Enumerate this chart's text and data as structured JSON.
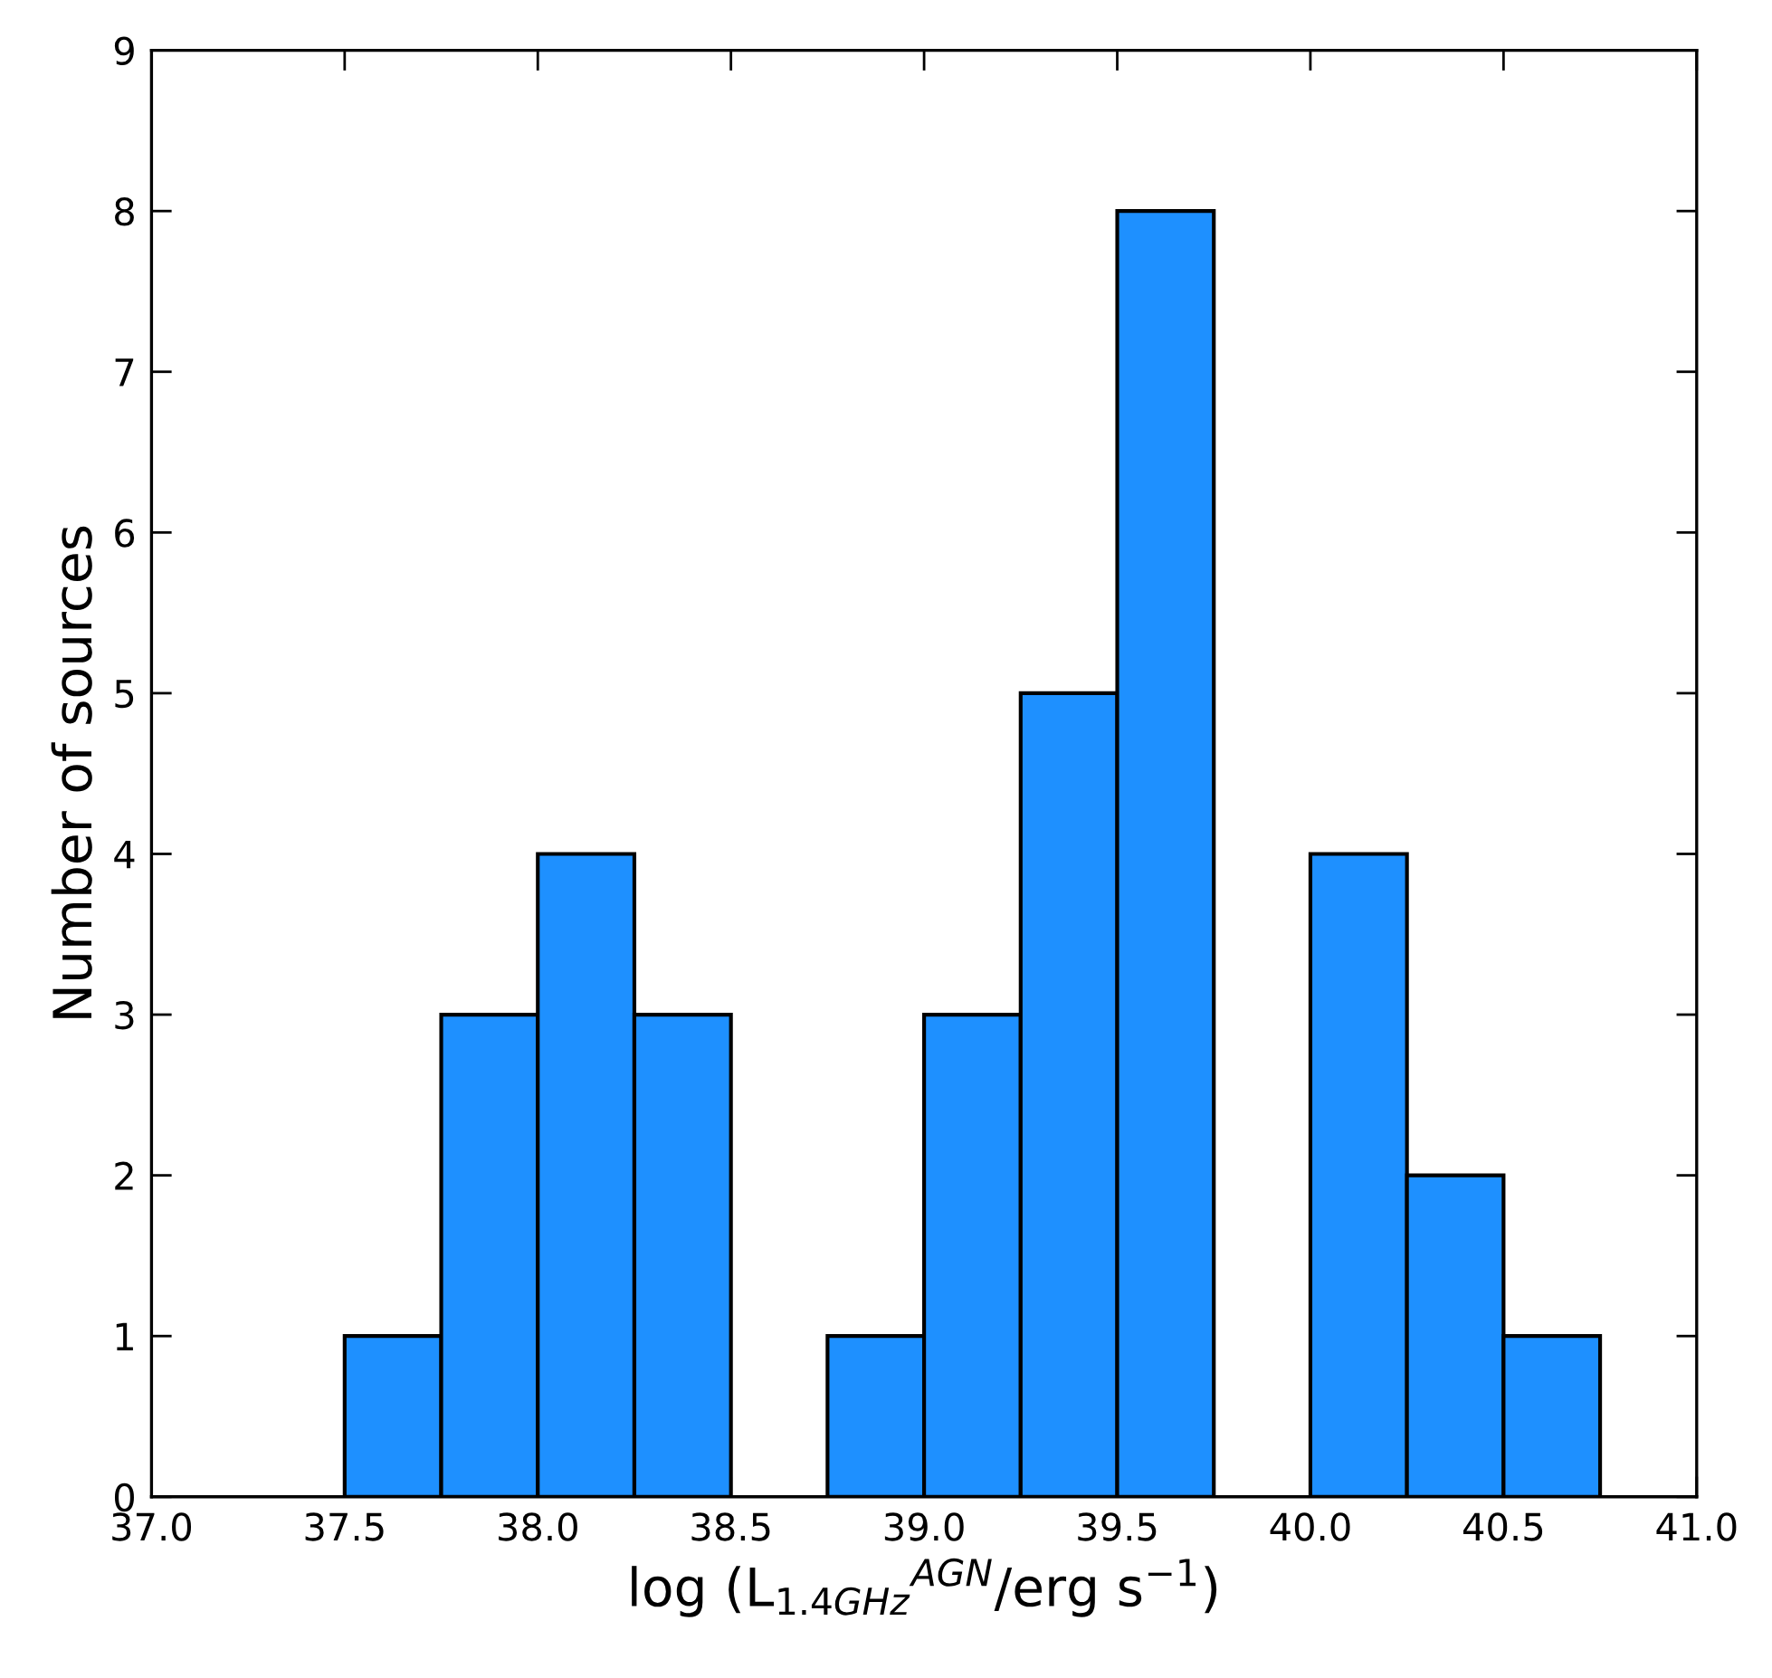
{
  "chart_data": {
    "type": "histogram",
    "xlabel": "log (L$_{1.4GHz}$$^{AGN}$/erg s$^{−1}$)",
    "ylabel": "Number of sources",
    "bins": [
      37.5,
      37.75,
      38.0,
      38.25,
      38.5,
      38.75,
      39.0,
      39.25,
      39.5,
      39.75,
      40.0,
      40.25,
      40.5,
      40.75
    ],
    "values": [
      1,
      3,
      4,
      3,
      0,
      1,
      3,
      5,
      8,
      0,
      4,
      2,
      1
    ],
    "color": "#1e90ff",
    "xlim": [
      37.0,
      41.0
    ],
    "xticks": [
      {
        "value": 37.0,
        "label": "37.0"
      },
      {
        "value": 37.5,
        "label": "37.5"
      },
      {
        "value": 38.0,
        "label": "38.0"
      },
      {
        "value": 38.5,
        "label": "38.5"
      },
      {
        "value": 39.0,
        "label": "39.0"
      },
      {
        "value": 39.5,
        "label": "39.5"
      },
      {
        "value": 40.0,
        "label": "40.0"
      },
      {
        "value": 40.5,
        "label": "40.5"
      },
      {
        "value": 41.0,
        "label": "41.0"
      }
    ],
    "ylim": [
      0,
      9
    ],
    "yticks": [
      0,
      1,
      2,
      3,
      4,
      5,
      6,
      7,
      8,
      9
    ],
    "grid": false
  }
}
